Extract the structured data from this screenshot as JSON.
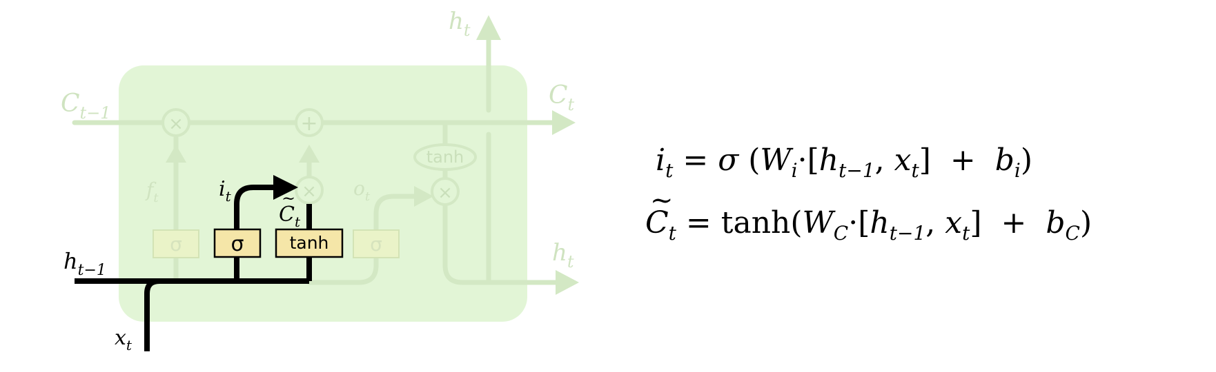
{
  "diagram": {
    "labels": {
      "c_prev": {
        "base": "C",
        "sub": "t−1"
      },
      "c_t": {
        "base": "C",
        "sub": "t"
      },
      "h_top": {
        "base": "h",
        "sub": "t"
      },
      "h_right": {
        "base": "h",
        "sub": "t"
      },
      "h_prev": {
        "base": "h",
        "sub": "t−1"
      },
      "x_t": {
        "base": "x",
        "sub": "t"
      },
      "f_t": {
        "base": "f",
        "sub": "t"
      },
      "i_t": {
        "base": "i",
        "sub": "t"
      },
      "o_t": {
        "base": "o",
        "sub": "t"
      },
      "c_tilde": {
        "tilde": "~",
        "base": "C",
        "sub": "t"
      }
    },
    "ops": {
      "multiply": "×",
      "add": "+",
      "tanh": "tanh"
    },
    "gates": {
      "forget": "σ",
      "input": "σ",
      "candidate": "tanh",
      "output": "σ"
    },
    "colors": {
      "cell_fill": "#e2f5d6",
      "faded_line": "#d3e8c4",
      "faded_text": "#cfe3c0",
      "highlight_line": "#000000",
      "gate_fill": "#f5e6a8"
    }
  },
  "equations": {
    "input_gate": {
      "lhs": {
        "var": "i",
        "sub": "t"
      },
      "eq": " = ",
      "func": "σ",
      "open": " (",
      "weight": {
        "var": "W",
        "sub": "i"
      },
      "dot": "·",
      "bracket_open": "[",
      "h": {
        "var": "h",
        "sub": "t−1"
      },
      "comma": ", ",
      "x": {
        "var": "x",
        "sub": "t"
      },
      "bracket_close": "]",
      "plus": "  +  ",
      "bias": {
        "var": "b",
        "sub": "i"
      },
      "close": ")"
    },
    "candidate": {
      "lhs": {
        "var": "C",
        "tilde": "~",
        "sub": "t"
      },
      "eq": " = ",
      "func": "tanh",
      "open": "(",
      "weight": {
        "var": "W",
        "sub": "C"
      },
      "dot": "·",
      "bracket_open": "[",
      "h": {
        "var": "h",
        "sub": "t−1"
      },
      "comma": ", ",
      "x": {
        "var": "x",
        "sub": "t"
      },
      "bracket_close": "]",
      "plus": "  +  ",
      "bias": {
        "var": "b",
        "sub": "C"
      },
      "close": ")"
    }
  }
}
